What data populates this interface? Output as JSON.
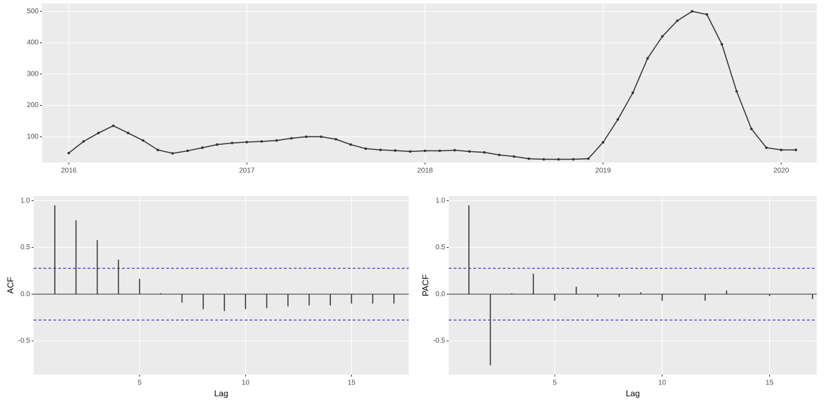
{
  "chart_data": [
    {
      "type": "line",
      "color": "#333333",
      "x": [
        2016,
        2016.083,
        2016.167,
        2016.25,
        2016.333,
        2016.417,
        2016.5,
        2016.583,
        2016.667,
        2016.75,
        2016.833,
        2016.917,
        2017,
        2017.083,
        2017.167,
        2017.25,
        2017.333,
        2017.417,
        2017.5,
        2017.583,
        2017.667,
        2017.75,
        2017.833,
        2017.917,
        2018,
        2018.083,
        2018.167,
        2018.25,
        2018.333,
        2018.417,
        2018.5,
        2018.583,
        2018.667,
        2018.75,
        2018.833,
        2018.917,
        2019,
        2019.083,
        2019.167,
        2019.25,
        2019.333,
        2019.417,
        2019.5,
        2019.583,
        2019.667,
        2019.75,
        2019.833,
        2019.917,
        2020,
        2020.083
      ],
      "values": [
        48,
        85,
        112,
        135,
        112,
        88,
        58,
        47,
        55,
        65,
        75,
        80,
        83,
        85,
        88,
        95,
        100,
        100,
        92,
        75,
        62,
        58,
        56,
        53,
        55,
        55,
        57,
        53,
        50,
        42,
        37,
        30,
        28,
        28,
        28,
        30,
        82,
        155,
        240,
        350,
        420,
        470,
        500,
        490,
        395,
        245,
        125,
        65,
        58,
        58
      ],
      "xlim": [
        2015.85,
        2020.2
      ],
      "xticks": [
        2016,
        2017,
        2018,
        2019,
        2020
      ],
      "ylim": [
        18,
        525
      ],
      "yticks": [
        100,
        200,
        300,
        400,
        500
      ],
      "grid": true
    },
    {
      "type": "stem",
      "color": "#333333",
      "y_label": "ACF",
      "x_label": "Lag",
      "x": [
        1,
        2,
        3,
        4,
        5,
        6,
        7,
        8,
        9,
        10,
        11,
        12,
        13,
        14,
        15,
        16,
        17
      ],
      "values": [
        0.95,
        0.79,
        0.58,
        0.37,
        0.165,
        0.01,
        -0.09,
        -0.16,
        -0.18,
        -0.16,
        -0.15,
        -0.13,
        -0.12,
        -0.12,
        -0.1,
        -0.1,
        -0.1
      ],
      "confidence": 0.277,
      "confidence_color": "#5b5bd6",
      "xlim": [
        0,
        17.7
      ],
      "xticks": [
        5,
        10,
        15
      ],
      "ylim": [
        -0.86,
        1.05
      ],
      "yticks": [
        -0.5,
        {
          "value": 0,
          "label": "0.0"
        },
        0.5,
        {
          "value": 1,
          "label": "1.0"
        }
      ],
      "grid": true
    },
    {
      "type": "stem",
      "color": "#333333",
      "y_label": "PACF",
      "x_label": "Lag",
      "x": [
        1,
        2,
        3,
        4,
        5,
        6,
        7,
        8,
        9,
        10,
        11,
        12,
        13,
        14,
        15,
        16,
        17
      ],
      "values": [
        0.95,
        -0.76,
        0.01,
        0.22,
        -0.07,
        0.08,
        -0.03,
        -0.03,
        0.02,
        -0.07,
        0.0,
        -0.07,
        0.04,
        0.0,
        -0.02,
        0.0,
        -0.05
      ],
      "confidence": 0.277,
      "confidence_color": "#5b5bd6",
      "xlim": [
        0.06,
        17.2
      ],
      "xticks": [
        5,
        10,
        15
      ],
      "ylim": [
        -0.86,
        1.05
      ],
      "yticks": [
        -0.5,
        {
          "value": 0,
          "label": "0.0"
        },
        0.5,
        {
          "value": 1,
          "label": "1.0"
        }
      ],
      "grid": true
    }
  ]
}
